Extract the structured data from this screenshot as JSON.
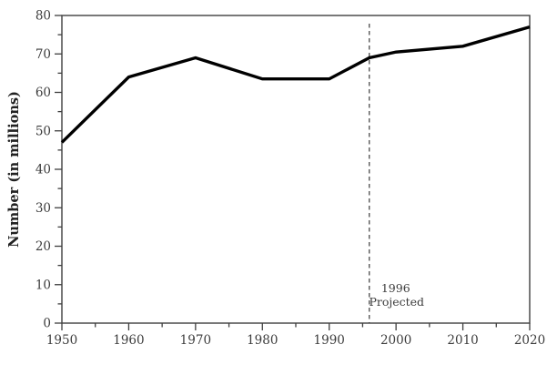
{
  "chart_data": {
    "type": "line",
    "title": "",
    "xlabel": "",
    "ylabel": "Number (in millions)",
    "xlim": [
      1950,
      2020
    ],
    "ylim": [
      0,
      80
    ],
    "x_major_ticks": [
      1950,
      1960,
      1970,
      1980,
      1990,
      2000,
      2010,
      2020
    ],
    "x_minor_ticks": [
      1955,
      1965,
      1975,
      1985,
      1995,
      2005,
      2015
    ],
    "y_major_ticks": [
      0,
      10,
      20,
      30,
      40,
      50,
      60,
      70,
      80
    ],
    "y_minor_ticks": [
      5,
      15,
      25,
      35,
      45,
      55,
      65,
      75
    ],
    "series": [
      {
        "name": "number-in-millions",
        "x": [
          1950,
          1960,
          1970,
          1980,
          1990,
          1996,
          2000,
          2010,
          2020
        ],
        "y": [
          47,
          64,
          69,
          63.5,
          63.5,
          69,
          70.5,
          72,
          77
        ]
      }
    ],
    "annotation": {
      "x": 1996,
      "line1": "1996",
      "line2": "Projected"
    },
    "grid": false,
    "legend": false,
    "frame": "box",
    "colors": {
      "background": "#ffffff",
      "line": "#000000",
      "axis": "#3f3f3f",
      "text": "#3c3c3c",
      "dashed_line": "#3c3c3c"
    }
  }
}
